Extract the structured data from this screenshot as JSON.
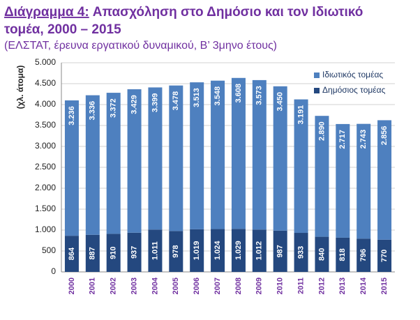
{
  "chart_data": {
    "type": "stacked_bar",
    "title_label": "Διάγραμμα 4:",
    "title": "Απασχόληση στο Δημόσιο και τον Ιδιωτικό τομέα, 2000 – 2015",
    "subtitle": "(ΕΛΣΤΑΤ, έρευνα εργατικού δυναμικού, Β’ 3μηνο έτους)",
    "y_label": "(χλ. άτομα)",
    "categories": [
      "2000",
      "2001",
      "2002",
      "2003",
      "2004",
      "2005",
      "2006",
      "2007",
      "2008",
      "2009",
      "2010",
      "2011",
      "2012",
      "2013",
      "2014",
      "2015"
    ],
    "series": [
      {
        "name": "Δημόσιος τομέας",
        "color": "#24487f",
        "values": [
          864,
          887,
          910,
          937,
          1011,
          978,
          1019,
          1024,
          1029,
          1012,
          987,
          933,
          840,
          818,
          796,
          770
        ],
        "value_labels": [
          "864",
          "887",
          "910",
          "937",
          "1.011",
          "978",
          "1.019",
          "1.024",
          "1.029",
          "1.012",
          "987",
          "933",
          "840",
          "818",
          "796",
          "770"
        ]
      },
      {
        "name": "Ιδιωτικός τομέας",
        "color": "#4e80bf",
        "values": [
          3236,
          3336,
          3372,
          3429,
          3399,
          3478,
          3513,
          3548,
          3608,
          3573,
          3450,
          3191,
          2890,
          2717,
          2743,
          2856
        ],
        "value_labels": [
          "3.236",
          "3.336",
          "3.372",
          "3.429",
          "3.399",
          "3.478",
          "3.513",
          "3.548",
          "3.608",
          "3.573",
          "3.450",
          "3.191",
          "2.890",
          "2.717",
          "2.743",
          "2.856"
        ]
      }
    ],
    "ylim": [
      0,
      5000
    ],
    "yticks": [
      0,
      500,
      {
        "value": 1000,
        "label": "1.000"
      },
      {
        "value": 1500,
        "label": "1.500"
      },
      {
        "value": 2000,
        "label": "2.000"
      },
      {
        "value": 2500,
        "label": "2.500"
      },
      {
        "value": 3000,
        "label": "3.000"
      },
      {
        "value": 3500,
        "label": "3.500"
      },
      {
        "value": 4000,
        "label": "4.000"
      },
      {
        "value": 4500,
        "label": "4.500"
      },
      {
        "value": 5000,
        "label": "5.000"
      }
    ],
    "grid": true
  }
}
